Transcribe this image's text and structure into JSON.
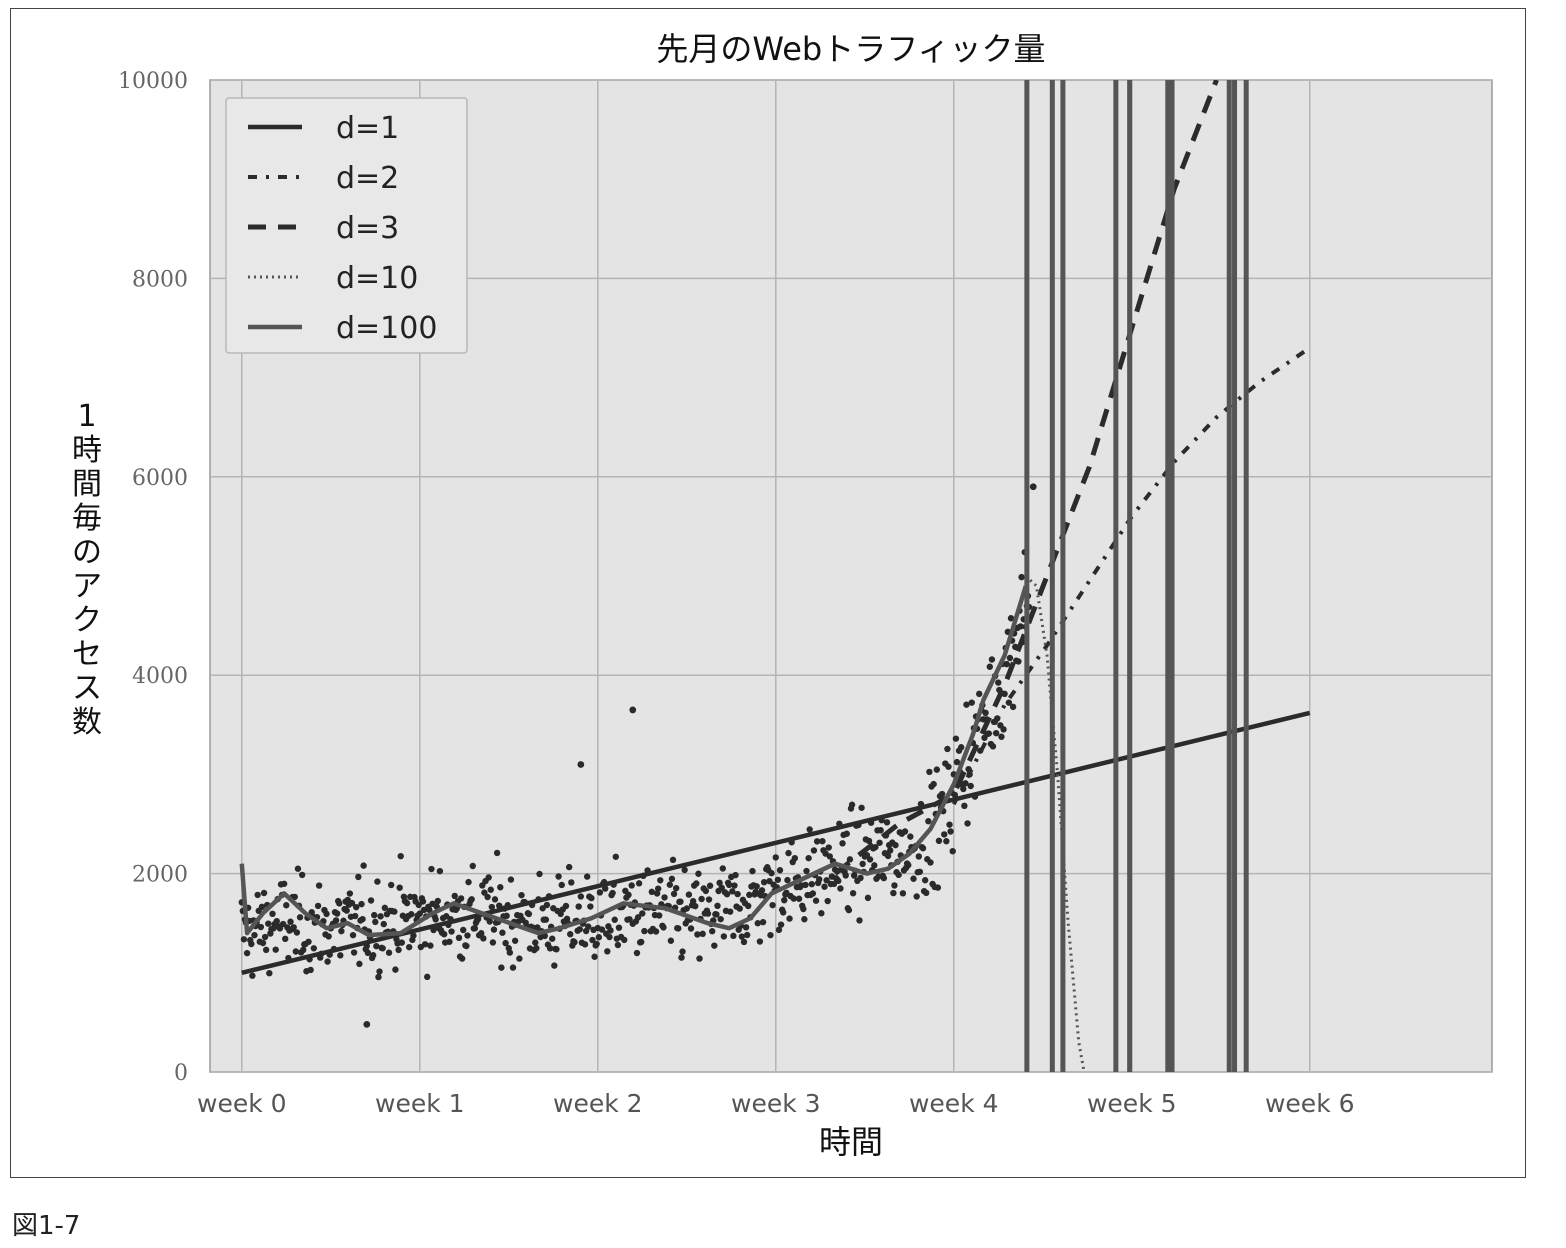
{
  "figure_label": "図1-7",
  "chart_data": {
    "type": "scatter",
    "title": "先月のWebトラフィック量",
    "xlabel": "時間",
    "ylabel": "1時間毎のアクセス数",
    "x_unit": "hours",
    "xlim": [
      -30,
      1180
    ],
    "ylim": [
      0,
      10000
    ],
    "x_ticks": [
      {
        "value": 0,
        "label": "week 0"
      },
      {
        "value": 168,
        "label": "week 1"
      },
      {
        "value": 336,
        "label": "week 2"
      },
      {
        "value": 504,
        "label": "week 3"
      },
      {
        "value": 672,
        "label": "week 4"
      },
      {
        "value": 840,
        "label": "week 5"
      },
      {
        "value": 1008,
        "label": "week 6"
      }
    ],
    "y_ticks": [
      0,
      2000,
      4000,
      6000,
      8000,
      10000
    ],
    "y_tick_labels": [
      "0",
      "2000",
      "4000",
      "6000",
      "8000",
      "10000"
    ],
    "grid": true,
    "legend_position": "top-left",
    "scatter_trend": [
      [
        0,
        1400
      ],
      [
        40,
        1500
      ],
      [
        80,
        1450
      ],
      [
        120,
        1500
      ],
      [
        168,
        1550
      ],
      [
        220,
        1600
      ],
      [
        280,
        1500
      ],
      [
        336,
        1550
      ],
      [
        380,
        1600
      ],
      [
        430,
        1550
      ],
      [
        480,
        1700
      ],
      [
        504,
        1850
      ],
      [
        550,
        2000
      ],
      [
        590,
        2150
      ],
      [
        630,
        2200
      ],
      [
        660,
        2500
      ],
      [
        672,
        2900
      ],
      [
        700,
        3500
      ],
      [
        720,
        4000
      ],
      [
        740,
        4800
      ]
    ],
    "outliers": [
      [
        118,
        480
      ],
      [
        320,
        3100
      ],
      [
        369,
        3650
      ],
      [
        747,
        5900
      ]
    ],
    "series": [
      {
        "name": "d=1",
        "style": "solid",
        "color": "#2b2b2b",
        "points": [
          [
            0,
            1000
          ],
          [
            1008,
            3620
          ]
        ]
      },
      {
        "name": "d=2",
        "style": "dashdot",
        "color": "#2b2b2b",
        "points": [
          [
            672,
            2700
          ],
          [
            720,
            3700
          ],
          [
            760,
            4300
          ],
          [
            800,
            4950
          ],
          [
            840,
            5600
          ],
          [
            880,
            6150
          ],
          [
            920,
            6600
          ],
          [
            960,
            6950
          ],
          [
            1008,
            7300
          ]
        ]
      },
      {
        "name": "d=3",
        "style": "dashed",
        "color": "#2b2b2b",
        "points": [
          [
            560,
            2000
          ],
          [
            620,
            2500
          ],
          [
            672,
            2800
          ],
          [
            720,
            3900
          ],
          [
            760,
            5000
          ],
          [
            800,
            6100
          ],
          [
            840,
            7500
          ],
          [
            880,
            8900
          ],
          [
            920,
            10000
          ]
        ]
      },
      {
        "name": "d=10",
        "style": "dotted",
        "color": "#555555",
        "points": [
          [
            740,
            5000
          ],
          [
            750,
            4900
          ],
          [
            760,
            4200
          ],
          [
            770,
            3000
          ],
          [
            780,
            1500
          ],
          [
            790,
            300
          ],
          [
            795,
            0
          ]
        ]
      },
      {
        "name": "d=100",
        "style": "solid",
        "color": "#555555",
        "points": [
          [
            0,
            2100
          ],
          [
            5,
            1400
          ],
          [
            20,
            1600
          ],
          [
            40,
            1800
          ],
          [
            60,
            1600
          ],
          [
            80,
            1450
          ],
          [
            100,
            1500
          ],
          [
            120,
            1380
          ],
          [
            150,
            1400
          ],
          [
            180,
            1600
          ],
          [
            200,
            1700
          ],
          [
            240,
            1550
          ],
          [
            280,
            1400
          ],
          [
            300,
            1450
          ],
          [
            330,
            1550
          ],
          [
            360,
            1700
          ],
          [
            400,
            1650
          ],
          [
            440,
            1500
          ],
          [
            460,
            1450
          ],
          [
            480,
            1550
          ],
          [
            500,
            1800
          ],
          [
            530,
            1950
          ],
          [
            560,
            2100
          ],
          [
            590,
            2000
          ],
          [
            610,
            2050
          ],
          [
            630,
            2200
          ],
          [
            650,
            2450
          ],
          [
            672,
            2900
          ],
          [
            690,
            3400
          ],
          [
            700,
            3750
          ],
          [
            720,
            4200
          ],
          [
            740,
            4900
          ]
        ],
        "vertical_lines_x": [
          741,
          765,
          775,
          825,
          838,
          874,
          878,
          932,
          937,
          948
        ]
      }
    ]
  }
}
